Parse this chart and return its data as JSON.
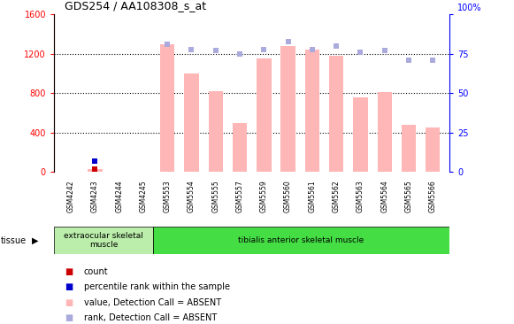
{
  "title": "GDS254 / AA108308_s_at",
  "samples": [
    "GSM4242",
    "GSM4243",
    "GSM4244",
    "GSM4245",
    "GSM5553",
    "GSM5554",
    "GSM5555",
    "GSM5557",
    "GSM5559",
    "GSM5560",
    "GSM5561",
    "GSM5562",
    "GSM5563",
    "GSM5564",
    "GSM5565",
    "GSM5566"
  ],
  "bar_values": [
    0,
    30,
    0,
    0,
    1300,
    1000,
    820,
    500,
    1150,
    1280,
    1240,
    1180,
    760,
    810,
    480,
    450
  ],
  "rank_values": [
    null,
    6.5,
    null,
    null,
    81,
    78,
    77,
    75,
    78,
    83,
    78,
    80,
    76,
    77,
    71,
    71
  ],
  "count_value": 30,
  "count_index": 1,
  "bar_color": "#FFB6B6",
  "rank_color": "#AAAADD",
  "count_color": "#CC0000",
  "percentile_color": "#0000CC",
  "ylim_left": [
    0,
    1600
  ],
  "ylim_right": [
    0,
    100
  ],
  "yticks_left": [
    0,
    400,
    800,
    1200,
    1600
  ],
  "yticks_right": [
    0,
    25,
    50,
    75,
    100
  ],
  "grid_values": [
    400,
    800,
    1200
  ],
  "tissue_groups": [
    {
      "label": "extraocular skeletal\nmuscle",
      "start": 0,
      "end": 4,
      "color": "#BBEEAA"
    },
    {
      "label": "tibialis anterior skeletal muscle",
      "start": 4,
      "end": 16,
      "color": "#44DD44"
    }
  ],
  "tissue_label": "tissue",
  "legend_items": [
    {
      "color": "#CC0000",
      "label": "count"
    },
    {
      "color": "#0000CC",
      "label": "percentile rank within the sample"
    },
    {
      "color": "#FFB6B6",
      "label": "value, Detection Call = ABSENT"
    },
    {
      "color": "#AAAADD",
      "label": "rank, Detection Call = ABSENT"
    }
  ],
  "background_color": "#FFFFFF",
  "xtick_bg_color": "#CCCCCC"
}
